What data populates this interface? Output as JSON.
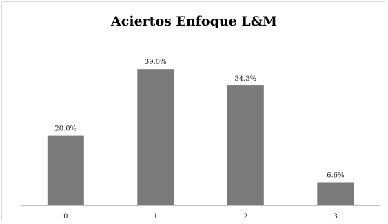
{
  "chart_data": {
    "type": "bar",
    "title": "Aciertos Enfoque L&M",
    "categories": [
      "0",
      "1",
      "2",
      "3"
    ],
    "values": [
      20.0,
      39.0,
      34.3,
      6.6
    ],
    "data_labels": [
      "20.0%",
      "39.0%",
      "34.3%",
      "6.6%"
    ],
    "ylim": [
      0,
      42
    ],
    "grid": false,
    "legend": "none",
    "bar_color": "#7a7a7a",
    "axis_color": "#bfbfbf"
  }
}
